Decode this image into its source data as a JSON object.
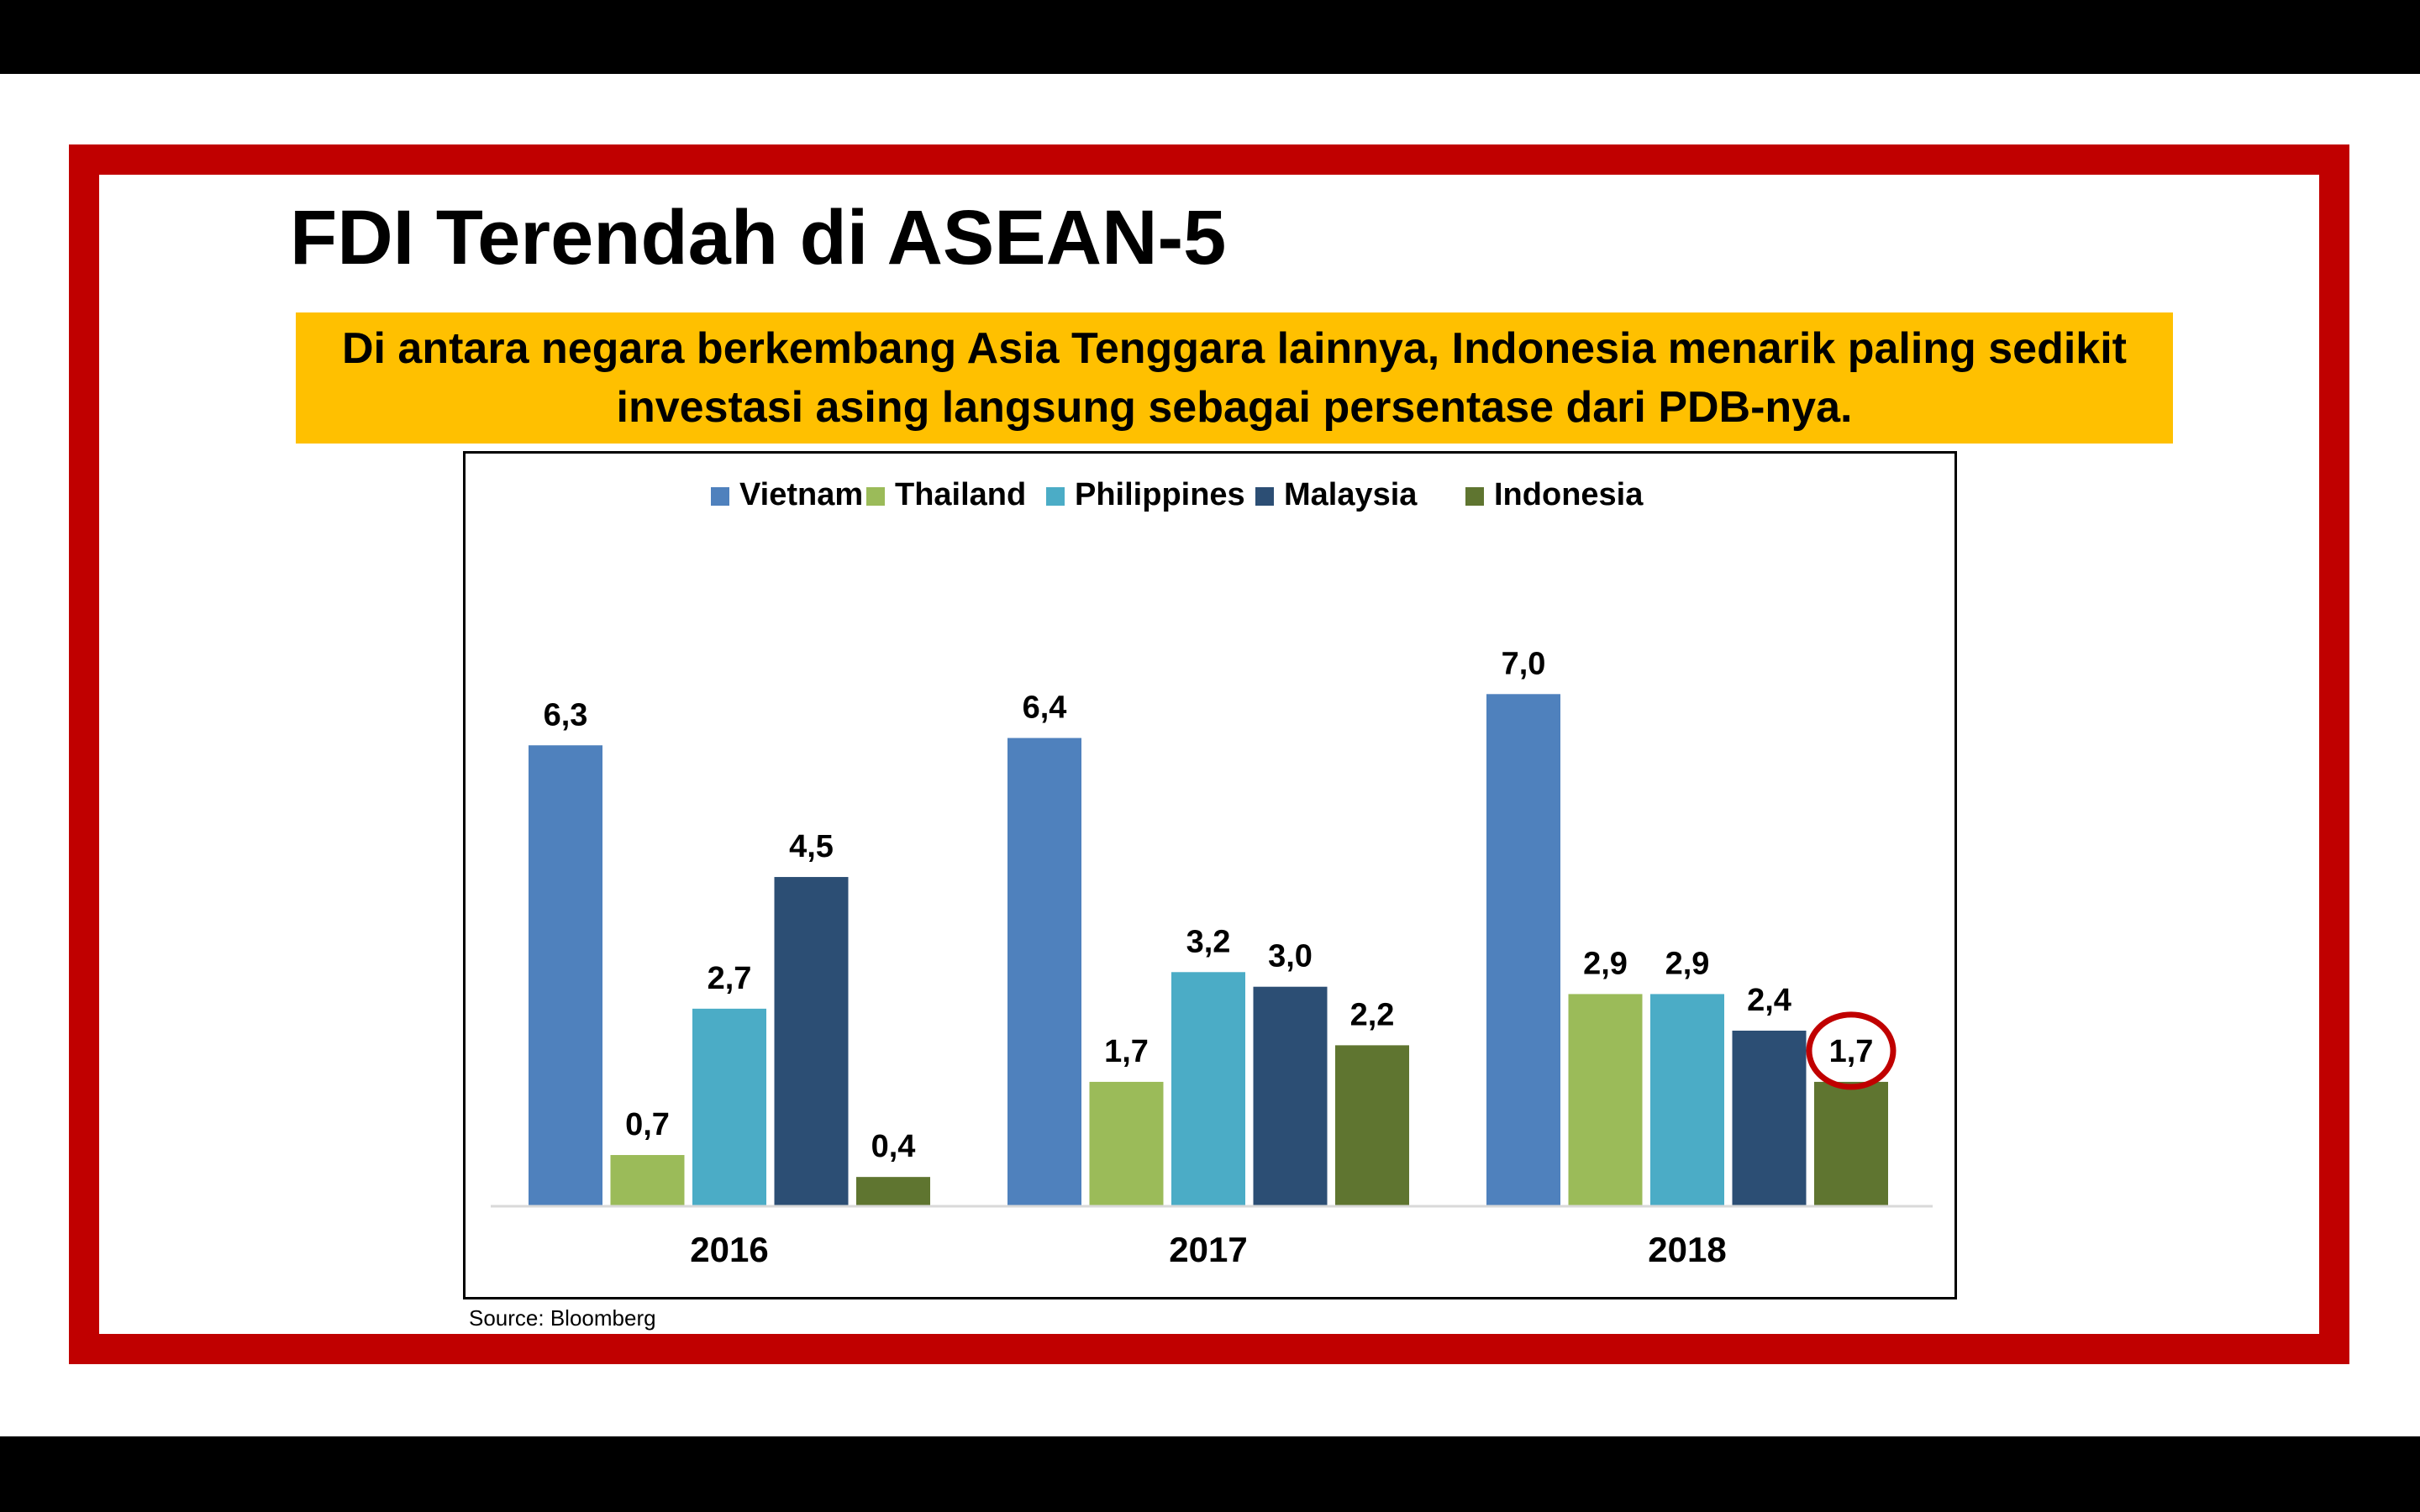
{
  "slide": {
    "title": "FDI Terendah di ASEAN-5",
    "subtitle": "Di antara negara berkembang Asia Tenggara lainnya, Indonesia menarik paling sedikit investasi asing langsung sebagai persentase dari PDB-nya.",
    "source": "Source: Bloomberg"
  },
  "colors": {
    "frame": "#c00000",
    "subtitle_bg": "#ffc000",
    "highlight_circle": "#c00000"
  },
  "chart_data": {
    "type": "bar",
    "categories": [
      "2016",
      "2017",
      "2018"
    ],
    "series": [
      {
        "name": "Vietnam",
        "color": "#4f81bd",
        "values": [
          6.3,
          6.4,
          7.0
        ],
        "labels": [
          "6,3",
          "6,4",
          "7,0"
        ]
      },
      {
        "name": "Thailand",
        "color": "#9bbb59",
        "values": [
          0.7,
          1.7,
          2.9
        ],
        "labels": [
          "0,7",
          "1,7",
          "2,9"
        ]
      },
      {
        "name": "Philippines",
        "color": "#4bacc6",
        "values": [
          2.7,
          3.2,
          2.9
        ],
        "labels": [
          "2,7",
          "3,2",
          "2,9"
        ]
      },
      {
        "name": "Malaysia",
        "color": "#2c4e74",
        "values": [
          4.5,
          3.0,
          2.4
        ],
        "labels": [
          "4,5",
          "3,0",
          "2,4"
        ]
      },
      {
        "name": "Indonesia",
        "color": "#5f7530",
        "values": [
          0.4,
          2.2,
          1.7
        ],
        "labels": [
          "0,4",
          "2,2",
          "1,7"
        ]
      }
    ],
    "highlight": {
      "series": "Indonesia",
      "category": "2018"
    },
    "ylim": [
      0,
      7.0
    ],
    "grid": false,
    "y_axis_shown": false,
    "legend_position": "top-center",
    "title": "",
    "xlabel": "",
    "ylabel": ""
  }
}
